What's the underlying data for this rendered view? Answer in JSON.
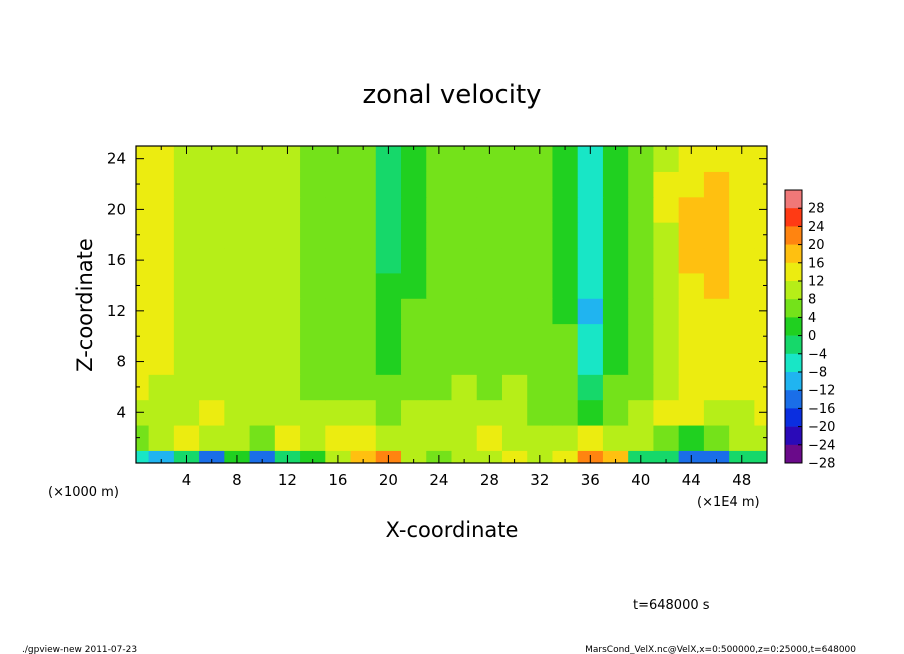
{
  "chart_data": {
    "type": "heatmap",
    "title": "zonal velocity",
    "xlabel": "X-coordinate",
    "ylabel": "Z-coordinate",
    "x_units_label": "(×1E4 m)",
    "y_units_label": "(×1000 m)",
    "xlim": [
      0,
      50
    ],
    "ylim": [
      0,
      25
    ],
    "x_ticks": [
      4,
      8,
      12,
      16,
      20,
      24,
      28,
      32,
      36,
      40,
      44,
      48
    ],
    "y_ticks": [
      4,
      8,
      12,
      16,
      20,
      24
    ],
    "colorbar": {
      "levels": [
        -28,
        -24,
        -20,
        -16,
        -12,
        -8,
        -4,
        0,
        4,
        8,
        12,
        16,
        20,
        24,
        28
      ],
      "labels": [
        "28",
        "24",
        "20",
        "16",
        "12",
        "8",
        "4",
        "0",
        "−4",
        "−8",
        "−12",
        "−16",
        "−20",
        "−24",
        "−28"
      ],
      "colors": [
        "#6a0a8a",
        "#2a0ab8",
        "#0a2ee0",
        "#1a6ee8",
        "#20b4f0",
        "#18e6c6",
        "#16d86a",
        "#20d020",
        "#74e21a",
        "#b6ee18",
        "#ecec10",
        "#ffc010",
        "#ff8410",
        "#ff3a14",
        "#f07878"
      ]
    },
    "field": {
      "x": [
        0,
        2,
        4,
        6,
        8,
        10,
        12,
        14,
        16,
        18,
        20,
        22,
        24,
        26,
        28,
        30,
        32,
        34,
        36,
        38,
        40,
        42,
        44,
        46,
        48,
        50
      ],
      "z": [
        0,
        2,
        4,
        6,
        8,
        10,
        12,
        14,
        16,
        18,
        20,
        22,
        24
      ],
      "values": [
        [
          -10,
          -16,
          -6,
          -18,
          -2,
          -20,
          -6,
          -4,
          4,
          12,
          16,
          6,
          2,
          6,
          4,
          8,
          6,
          8,
          16,
          14,
          -6,
          -6,
          -18,
          -20,
          -8,
          -8
        ],
        [
          2,
          4,
          8,
          4,
          6,
          2,
          8,
          4,
          10,
          8,
          4,
          6,
          6,
          4,
          8,
          6,
          4,
          4,
          8,
          4,
          4,
          2,
          -4,
          2,
          4,
          6
        ],
        [
          6,
          4,
          6,
          8,
          6,
          4,
          4,
          6,
          4,
          6,
          2,
          4,
          4,
          6,
          4,
          4,
          2,
          2,
          -4,
          2,
          4,
          8,
          8,
          6,
          4,
          8
        ],
        [
          8,
          6,
          6,
          4,
          6,
          4,
          4,
          2,
          2,
          2,
          0,
          2,
          2,
          4,
          2,
          4,
          2,
          2,
          -8,
          0,
          2,
          6,
          8,
          8,
          8,
          8
        ],
        [
          8,
          8,
          6,
          4,
          6,
          4,
          4,
          2,
          2,
          0,
          -2,
          0,
          0,
          2,
          2,
          2,
          2,
          0,
          -10,
          -2,
          2,
          6,
          8,
          8,
          8,
          8
        ],
        [
          8,
          8,
          6,
          4,
          6,
          4,
          4,
          2,
          0,
          0,
          -4,
          0,
          0,
          2,
          0,
          2,
          2,
          0,
          -12,
          -2,
          0,
          6,
          10,
          10,
          8,
          8
        ],
        [
          8,
          8,
          6,
          4,
          6,
          4,
          4,
          2,
          0,
          0,
          -4,
          0,
          0,
          0,
          0,
          0,
          0,
          -2,
          -14,
          -4,
          0,
          4,
          10,
          10,
          10,
          8
        ],
        [
          8,
          8,
          6,
          4,
          6,
          4,
          4,
          2,
          0,
          0,
          -4,
          -2,
          0,
          0,
          0,
          0,
          0,
          -2,
          -12,
          -4,
          0,
          4,
          10,
          12,
          10,
          8
        ],
        [
          8,
          8,
          6,
          4,
          6,
          4,
          4,
          2,
          0,
          0,
          -6,
          -2,
          0,
          0,
          0,
          0,
          0,
          -2,
          -10,
          -4,
          0,
          6,
          12,
          12,
          10,
          8
        ],
        [
          8,
          8,
          6,
          4,
          6,
          4,
          4,
          2,
          0,
          0,
          -6,
          -2,
          0,
          0,
          0,
          0,
          0,
          -2,
          -10,
          -4,
          0,
          6,
          12,
          14,
          10,
          8
        ],
        [
          8,
          8,
          6,
          4,
          6,
          4,
          4,
          2,
          0,
          0,
          -6,
          -2,
          0,
          0,
          0,
          0,
          0,
          -2,
          -12,
          -4,
          0,
          8,
          12,
          14,
          10,
          8
        ],
        [
          8,
          8,
          6,
          4,
          6,
          4,
          4,
          2,
          0,
          0,
          -6,
          -2,
          0,
          0,
          0,
          0,
          0,
          -2,
          -12,
          -4,
          0,
          8,
          10,
          12,
          10,
          8
        ],
        [
          8,
          8,
          6,
          6,
          6,
          4,
          4,
          2,
          0,
          0,
          -6,
          -2,
          0,
          0,
          0,
          0,
          0,
          -2,
          -12,
          -4,
          0,
          6,
          10,
          10,
          10,
          8
        ]
      ]
    }
  },
  "footer": {
    "time": "t=648000 s",
    "left": "./gpview-new   2011-07-23",
    "right": "MarsCond_VelX.nc@VelX,x=0:500000,z=0:25000,t=648000"
  }
}
